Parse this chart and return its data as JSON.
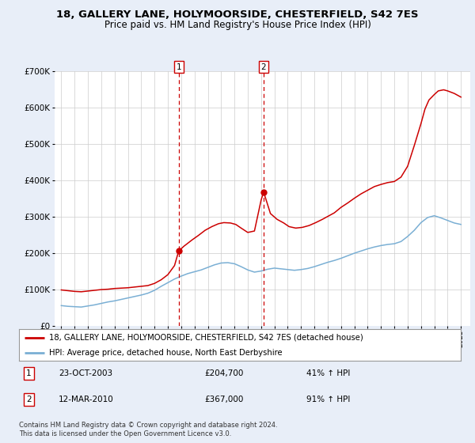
{
  "title_line1": "18, GALLERY LANE, HOLYMOORSIDE, CHESTERFIELD, S42 7ES",
  "title_line2": "Price paid vs. HM Land Registry's House Price Index (HPI)",
  "title_fontsize": 9.5,
  "subtitle_fontsize": 8.5,
  "background_color": "#e8eef8",
  "plot_bg_color": "#ffffff",
  "red_line_color": "#cc0000",
  "blue_line_color": "#7aafd4",
  "marker1_x": 2003.81,
  "marker2_x": 2010.19,
  "marker1_price_y": 204700,
  "marker2_price_y": 367000,
  "marker1_label": "1",
  "marker2_label": "2",
  "marker1_date": "23-OCT-2003",
  "marker1_price": "£204,700",
  "marker1_hpi": "41% ↑ HPI",
  "marker2_date": "12-MAR-2010",
  "marker2_price": "£367,000",
  "marker2_hpi": "91% ↑ HPI",
  "legend_line1": "18, GALLERY LANE, HOLYMOORSIDE, CHESTERFIELD, S42 7ES (detached house)",
  "legend_line2": "HPI: Average price, detached house, North East Derbyshire",
  "footer_line1": "Contains HM Land Registry data © Crown copyright and database right 2024.",
  "footer_line2": "This data is licensed under the Open Government Licence v3.0.",
  "ylim": [
    0,
    700000
  ],
  "yticks": [
    0,
    100000,
    200000,
    300000,
    400000,
    500000,
    600000,
    700000
  ],
  "ytick_labels": [
    "£0",
    "£100K",
    "£200K",
    "£300K",
    "£400K",
    "£500K",
    "£600K",
    "£700K"
  ],
  "xlim_start": 1994.5,
  "xlim_end": 2025.7,
  "red_years": [
    1995.0,
    1995.5,
    1996.0,
    1996.5,
    1997.0,
    1997.5,
    1998.0,
    1998.5,
    1999.0,
    1999.5,
    2000.0,
    2000.5,
    2001.0,
    2001.5,
    2002.0,
    2002.5,
    2003.0,
    2003.5,
    2003.81,
    2004.2,
    2004.8,
    2005.3,
    2005.8,
    2006.3,
    2006.8,
    2007.2,
    2007.7,
    2008.1,
    2008.5,
    2009.0,
    2009.5,
    2010.0,
    2010.19,
    2010.7,
    2011.2,
    2011.7,
    2012.1,
    2012.6,
    2013.1,
    2013.6,
    2014.1,
    2014.6,
    2015.0,
    2015.5,
    2016.0,
    2016.5,
    2017.0,
    2017.5,
    2018.0,
    2018.5,
    2019.0,
    2019.5,
    2020.0,
    2020.5,
    2021.0,
    2021.5,
    2022.0,
    2022.3,
    2022.6,
    2023.0,
    2023.3,
    2023.7,
    2024.0,
    2024.5,
    2025.0
  ],
  "red_values": [
    98000,
    96000,
    94000,
    93000,
    95000,
    97000,
    99000,
    100000,
    102000,
    103000,
    104000,
    106000,
    108000,
    110000,
    116000,
    126000,
    140000,
    165000,
    204700,
    218000,
    235000,
    248000,
    262000,
    272000,
    280000,
    283000,
    282000,
    278000,
    268000,
    256000,
    260000,
    345000,
    367000,
    308000,
    292000,
    282000,
    272000,
    268000,
    270000,
    275000,
    283000,
    292000,
    300000,
    310000,
    325000,
    337000,
    350000,
    362000,
    372000,
    382000,
    388000,
    393000,
    396000,
    408000,
    438000,
    495000,
    555000,
    595000,
    620000,
    635000,
    645000,
    648000,
    645000,
    638000,
    628000
  ],
  "blue_years": [
    1995.0,
    1995.5,
    1996.0,
    1996.5,
    1997.0,
    1997.5,
    1998.0,
    1998.5,
    1999.0,
    1999.5,
    2000.0,
    2000.5,
    2001.0,
    2001.5,
    2002.0,
    2002.5,
    2003.0,
    2003.5,
    2004.0,
    2004.5,
    2005.0,
    2005.5,
    2006.0,
    2006.5,
    2007.0,
    2007.5,
    2008.0,
    2008.5,
    2009.0,
    2009.5,
    2010.0,
    2010.5,
    2011.0,
    2011.5,
    2012.0,
    2012.5,
    2013.0,
    2013.5,
    2014.0,
    2014.5,
    2015.0,
    2015.5,
    2016.0,
    2016.5,
    2017.0,
    2017.5,
    2018.0,
    2018.5,
    2019.0,
    2019.5,
    2020.0,
    2020.5,
    2021.0,
    2021.5,
    2022.0,
    2022.5,
    2023.0,
    2023.5,
    2024.0,
    2024.5,
    2025.0
  ],
  "blue_values": [
    55000,
    53000,
    52000,
    51000,
    54000,
    57000,
    61000,
    65000,
    68000,
    72000,
    76000,
    80000,
    84000,
    89000,
    97000,
    108000,
    118000,
    128000,
    136000,
    143000,
    148000,
    153000,
    160000,
    167000,
    172000,
    173000,
    170000,
    162000,
    153000,
    147000,
    150000,
    155000,
    158000,
    156000,
    154000,
    152000,
    154000,
    157000,
    162000,
    168000,
    174000,
    179000,
    185000,
    192000,
    199000,
    205000,
    211000,
    216000,
    220000,
    223000,
    225000,
    231000,
    245000,
    262000,
    283000,
    297000,
    302000,
    296000,
    289000,
    282000,
    278000
  ]
}
